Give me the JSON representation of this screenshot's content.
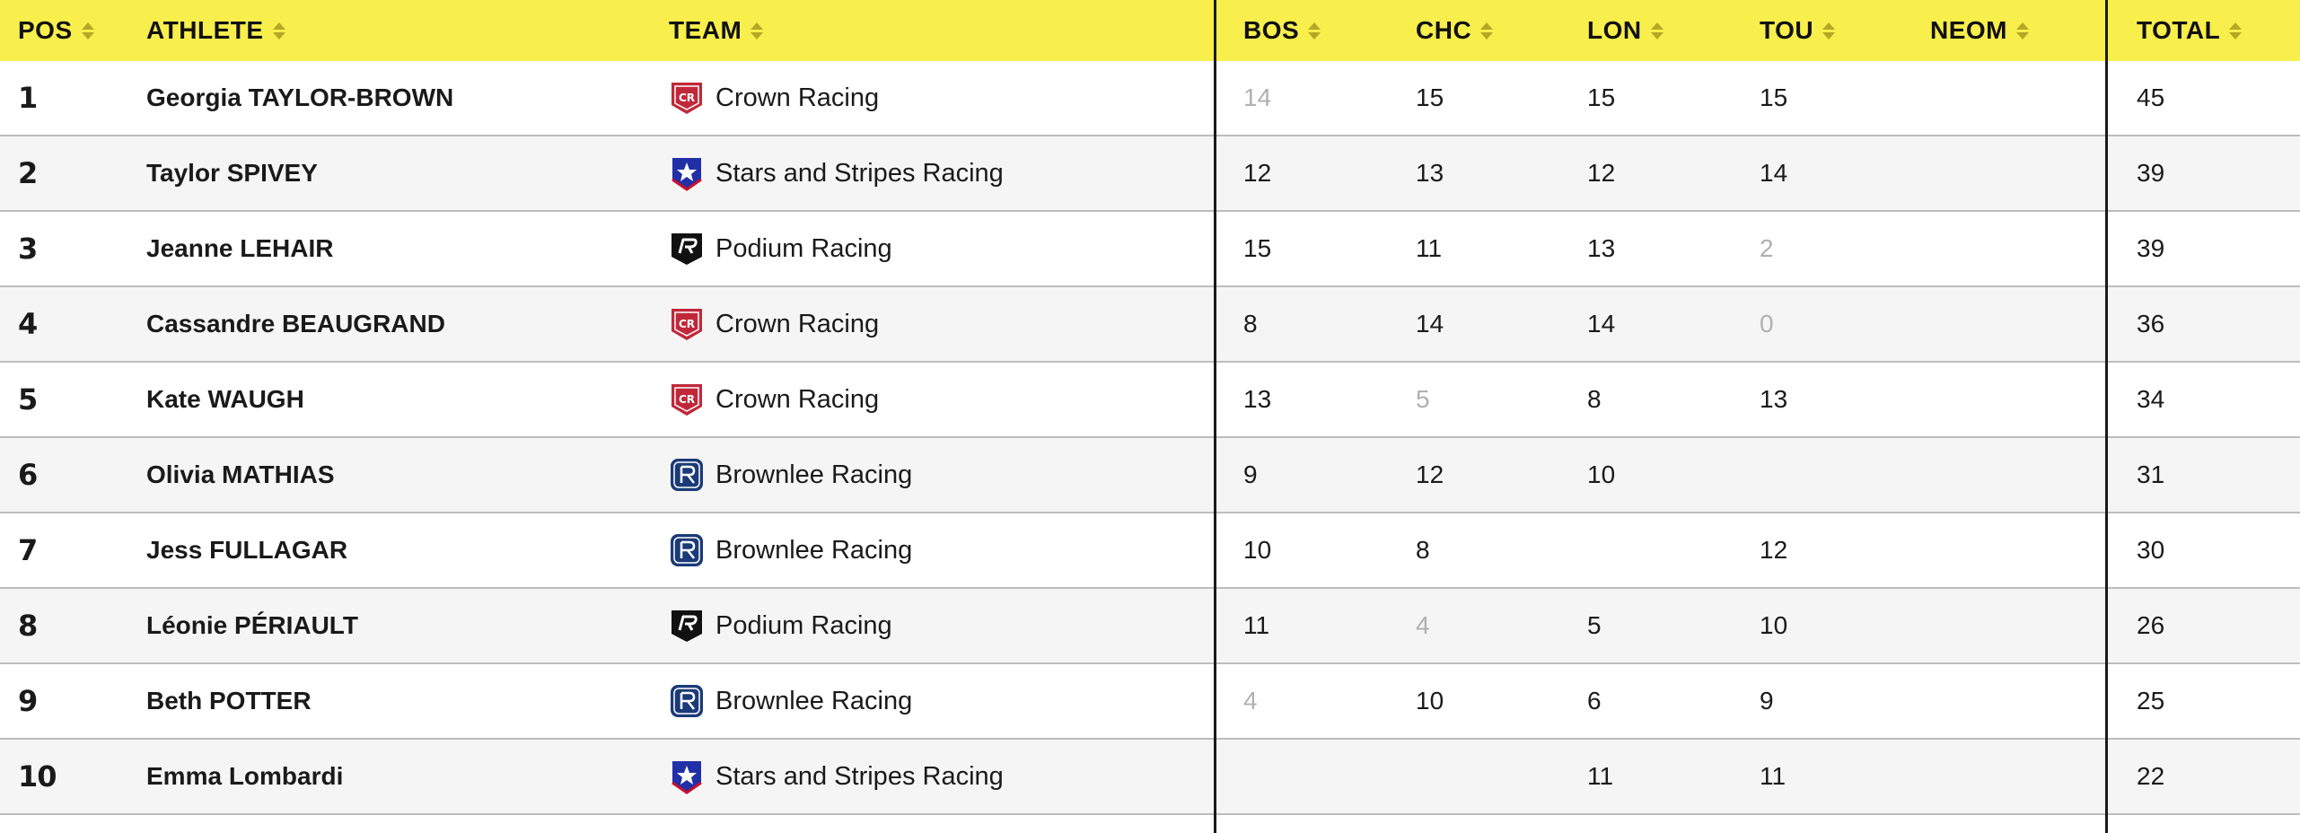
{
  "columns": {
    "pos": "POS",
    "athlete": "ATHLETE",
    "team": "TEAM",
    "bos": "BOS",
    "chc": "CHC",
    "lon": "LON",
    "tou": "TOU",
    "neom": "NEOM",
    "total": "TOTAL"
  },
  "team_logos": {
    "Crown Racing": "crown-racing-logo-icon",
    "Stars and Stripes Racing": "stars-and-stripes-racing-logo-icon",
    "Podium Racing": "podium-racing-logo-icon",
    "Brownlee Racing": "brownlee-racing-logo-icon"
  },
  "colors": {
    "header_bg": "#f8ee4c",
    "dropped_score": "#b0b0b0",
    "crown": "#c0283a",
    "stars": "#2230a8",
    "podium": "#111111",
    "brownlee": "#1b3a78"
  },
  "rows": [
    {
      "pos": "1",
      "athlete": "Georgia TAYLOR-BROWN",
      "team": "Crown Racing",
      "bos": "14",
      "chc": "15",
      "lon": "15",
      "tou": "15",
      "neom": "",
      "total": "45",
      "dropped": [
        "bos"
      ]
    },
    {
      "pos": "2",
      "athlete": "Taylor SPIVEY",
      "team": "Stars and Stripes Racing",
      "bos": "12",
      "chc": "13",
      "lon": "12",
      "tou": "14",
      "neom": "",
      "total": "39",
      "dropped": []
    },
    {
      "pos": "3",
      "athlete": "Jeanne LEHAIR",
      "team": "Podium Racing",
      "bos": "15",
      "chc": "11",
      "lon": "13",
      "tou": "2",
      "neom": "",
      "total": "39",
      "dropped": [
        "tou"
      ]
    },
    {
      "pos": "4",
      "athlete": "Cassandre BEAUGRAND",
      "team": "Crown Racing",
      "bos": "8",
      "chc": "14",
      "lon": "14",
      "tou": "0",
      "neom": "",
      "total": "36",
      "dropped": [
        "tou"
      ]
    },
    {
      "pos": "5",
      "athlete": "Kate WAUGH",
      "team": "Crown Racing",
      "bos": "13",
      "chc": "5",
      "lon": "8",
      "tou": "13",
      "neom": "",
      "total": "34",
      "dropped": [
        "chc"
      ]
    },
    {
      "pos": "6",
      "athlete": "Olivia MATHIAS",
      "team": "Brownlee Racing",
      "bos": "9",
      "chc": "12",
      "lon": "10",
      "tou": "",
      "neom": "",
      "total": "31",
      "dropped": []
    },
    {
      "pos": "7",
      "athlete": "Jess FULLAGAR",
      "team": "Brownlee Racing",
      "bos": "10",
      "chc": "8",
      "lon": "",
      "tou": "12",
      "neom": "",
      "total": "30",
      "dropped": []
    },
    {
      "pos": "8",
      "athlete": "Léonie PÉRIAULT",
      "team": "Podium Racing",
      "bos": "11",
      "chc": "4",
      "lon": "5",
      "tou": "10",
      "neom": "",
      "total": "26",
      "dropped": [
        "chc"
      ]
    },
    {
      "pos": "9",
      "athlete": "Beth POTTER",
      "team": "Brownlee Racing",
      "bos": "4",
      "chc": "10",
      "lon": "6",
      "tou": "9",
      "neom": "",
      "total": "25",
      "dropped": [
        "bos"
      ]
    },
    {
      "pos": "10",
      "athlete": "Emma Lombardi",
      "team": "Stars and Stripes Racing",
      "bos": "",
      "chc": "",
      "lon": "11",
      "tou": "11",
      "neom": "",
      "total": "22",
      "dropped": []
    }
  ]
}
